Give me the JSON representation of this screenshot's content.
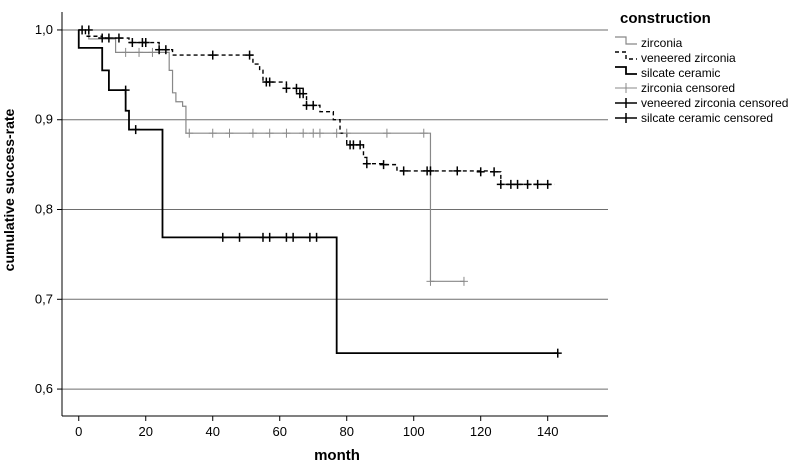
{
  "chart_data": {
    "type": "line",
    "subtype": "kaplan-meier",
    "title": "",
    "xlabel": "month",
    "ylabel": "cumulative success-rate",
    "xlim": [
      -5,
      158
    ],
    "ylim": [
      0.57,
      1.02
    ],
    "x_ticks": [
      0,
      20,
      40,
      60,
      80,
      100,
      120,
      140
    ],
    "y_ticks": [
      0.6,
      0.7,
      0.8,
      0.9,
      1.0
    ],
    "y_tick_labels": [
      "0,6",
      "0,7",
      "0,8",
      "0,9",
      "1,0"
    ],
    "horizontal_gridlines": true,
    "legend": {
      "title": "construction",
      "position": "top-right",
      "entries": [
        "zirconia",
        "veneered zirconia",
        "silcate ceramic",
        "zirconia censored",
        "veneered zirconia censored",
        "silcate ceramic censored"
      ]
    },
    "series": [
      {
        "name": "zirconia",
        "color": "#888888",
        "dash": "solid",
        "steps": [
          [
            0,
            1.0
          ],
          [
            3,
            0.99
          ],
          [
            11,
            0.975
          ],
          [
            27,
            0.955
          ],
          [
            28,
            0.93
          ],
          [
            29,
            0.92
          ],
          [
            31,
            0.915
          ],
          [
            32,
            0.885
          ],
          [
            105,
            0.72
          ],
          [
            115,
            0.72
          ]
        ],
        "censored": [
          [
            14,
            0.975
          ],
          [
            18,
            0.975
          ],
          [
            22,
            0.975
          ],
          [
            33,
            0.885
          ],
          [
            40,
            0.885
          ],
          [
            45,
            0.885
          ],
          [
            52,
            0.885
          ],
          [
            57,
            0.885
          ],
          [
            62,
            0.885
          ],
          [
            67,
            0.885
          ],
          [
            70,
            0.885
          ],
          [
            72,
            0.885
          ],
          [
            77,
            0.885
          ],
          [
            80,
            0.885
          ],
          [
            92,
            0.885
          ],
          [
            103,
            0.885
          ],
          [
            105,
            0.72
          ],
          [
            115,
            0.72
          ]
        ]
      },
      {
        "name": "veneered zirconia",
        "color": "#000000",
        "dash": "dashed",
        "steps": [
          [
            0,
            1.0
          ],
          [
            2,
            0.993
          ],
          [
            7,
            0.991
          ],
          [
            15,
            0.986
          ],
          [
            24,
            0.978
          ],
          [
            28,
            0.972
          ],
          [
            52,
            0.962
          ],
          [
            54,
            0.955
          ],
          [
            55,
            0.942
          ],
          [
            62,
            0.935
          ],
          [
            67,
            0.929
          ],
          [
            68,
            0.916
          ],
          [
            72,
            0.909
          ],
          [
            76,
            0.9
          ],
          [
            78,
            0.885
          ],
          [
            80,
            0.872
          ],
          [
            85,
            0.858
          ],
          [
            86,
            0.851
          ],
          [
            91,
            0.85
          ],
          [
            95,
            0.843
          ],
          [
            105,
            0.843
          ],
          [
            123,
            0.842
          ],
          [
            126,
            0.828
          ],
          [
            142,
            0.828
          ]
        ],
        "censored": [
          [
            1,
            1.0
          ],
          [
            3,
            1.0
          ],
          [
            7,
            0.991
          ],
          [
            9,
            0.991
          ],
          [
            12,
            0.991
          ],
          [
            16,
            0.986
          ],
          [
            19,
            0.986
          ],
          [
            20,
            0.986
          ],
          [
            24,
            0.978
          ],
          [
            26,
            0.978
          ],
          [
            40,
            0.972
          ],
          [
            51,
            0.972
          ],
          [
            56,
            0.942
          ],
          [
            57,
            0.942
          ],
          [
            62,
            0.935
          ],
          [
            65,
            0.935
          ],
          [
            66,
            0.929
          ],
          [
            67,
            0.929
          ],
          [
            68,
            0.916
          ],
          [
            70,
            0.916
          ],
          [
            81,
            0.872
          ],
          [
            82,
            0.872
          ],
          [
            84,
            0.872
          ],
          [
            86,
            0.851
          ],
          [
            91,
            0.85
          ],
          [
            97,
            0.843
          ],
          [
            104,
            0.843
          ],
          [
            105,
            0.843
          ],
          [
            113,
            0.843
          ],
          [
            120,
            0.842
          ],
          [
            124,
            0.842
          ],
          [
            126,
            0.828
          ],
          [
            129,
            0.828
          ],
          [
            131,
            0.828
          ],
          [
            134,
            0.828
          ],
          [
            137,
            0.828
          ],
          [
            140,
            0.828
          ]
        ]
      },
      {
        "name": "silcate ceramic",
        "color": "#000000",
        "dash": "solid",
        "steps": [
          [
            0,
            1.0
          ],
          [
            0,
            0.98
          ],
          [
            7,
            0.955
          ],
          [
            9,
            0.933
          ],
          [
            14,
            0.91
          ],
          [
            15,
            0.889
          ],
          [
            25,
            0.769
          ],
          [
            77,
            0.64
          ],
          [
            143,
            0.64
          ]
        ],
        "censored": [
          [
            14,
            0.933
          ],
          [
            17,
            0.889
          ],
          [
            43,
            0.769
          ],
          [
            48,
            0.769
          ],
          [
            55,
            0.769
          ],
          [
            57,
            0.769
          ],
          [
            62,
            0.769
          ],
          [
            64,
            0.769
          ],
          [
            69,
            0.769
          ],
          [
            71,
            0.769
          ],
          [
            143,
            0.64
          ]
        ]
      }
    ]
  }
}
